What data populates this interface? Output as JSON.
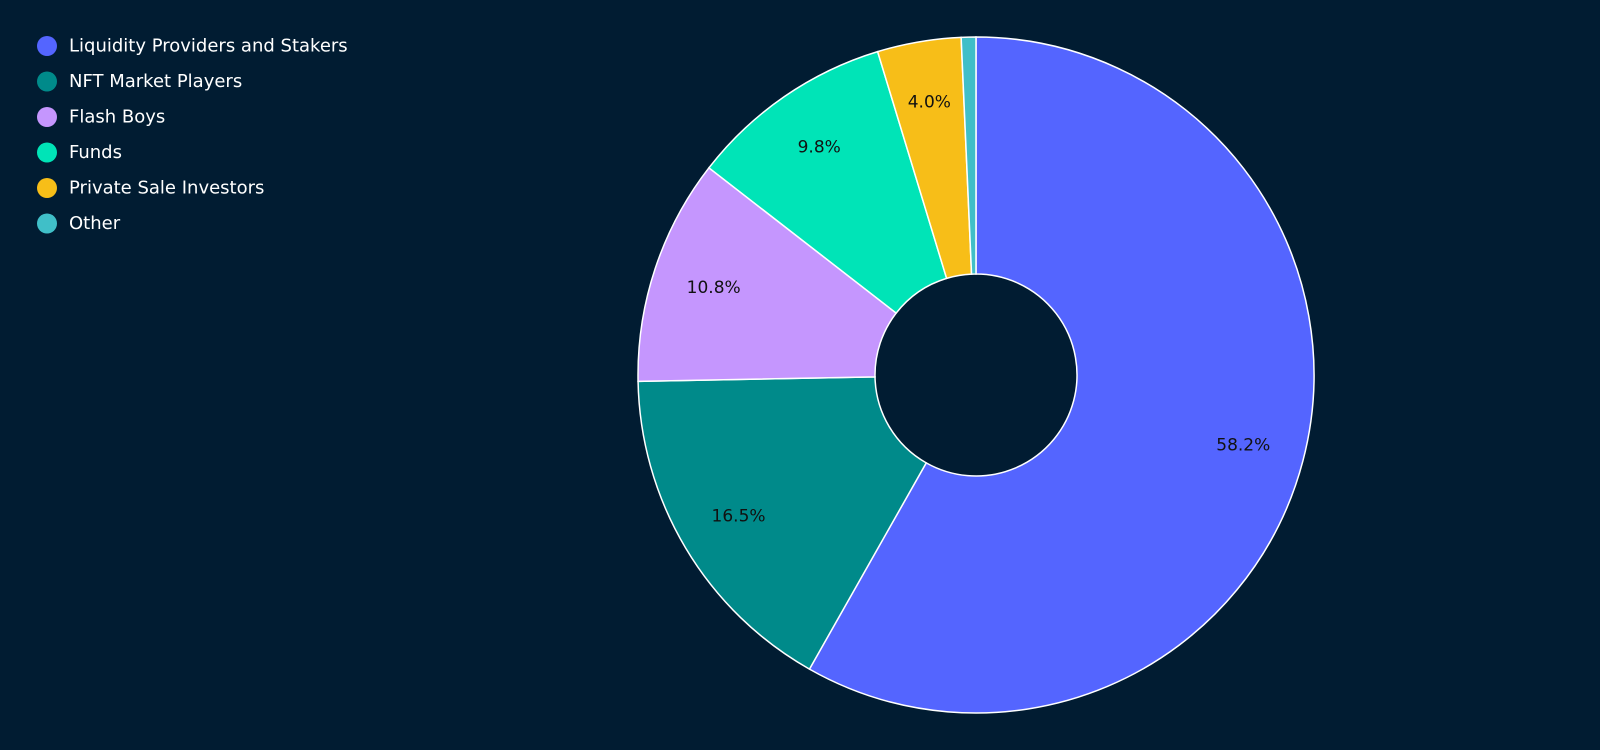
{
  "chart_data": {
    "type": "pie",
    "hole": true,
    "title": "",
    "legend_position": "top-left",
    "slices": [
      {
        "label": "Liquidity Providers and Stakers",
        "value": 58.2,
        "display": "58.2%",
        "color": "#5465ff"
      },
      {
        "label": "NFT Market Players",
        "value": 16.5,
        "display": "16.5%",
        "color": "#008a8a"
      },
      {
        "label": "Flash Boys",
        "value": 10.8,
        "display": "10.8%",
        "color": "#c596fe"
      },
      {
        "label": "Funds",
        "value": 9.8,
        "display": "9.8%",
        "color": "#00e4b7"
      },
      {
        "label": "Private Sale Investors",
        "value": 4.0,
        "display": "4.0%",
        "color": "#f7be18"
      },
      {
        "label": "Other",
        "value": 0.7,
        "display": "",
        "color": "#40bfc8"
      }
    ]
  }
}
